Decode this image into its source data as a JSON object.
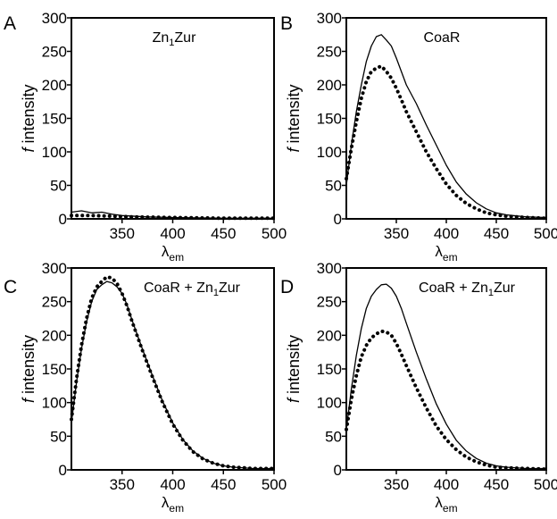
{
  "chart_data": [
    {
      "type": "line",
      "panel": "A",
      "annotation": {
        "main": "Zn",
        "sub": "1",
        "rest": "Zur"
      },
      "ylabel": {
        "italic": "f",
        "rest": " intensity"
      },
      "xlabel": {
        "main": "λ",
        "sub": "em"
      },
      "xlim": [
        300,
        500
      ],
      "ylim": [
        0,
        300
      ],
      "xticks": [
        350,
        400,
        450,
        500
      ],
      "yticks": [
        0,
        50,
        100,
        150,
        200,
        250,
        300
      ],
      "series": [
        {
          "style": "solid",
          "x": [
            300,
            310,
            320,
            330,
            340,
            350,
            375,
            400,
            450,
            500
          ],
          "y": [
            10,
            12,
            9,
            10,
            7,
            5,
            3,
            2,
            1,
            1
          ]
        },
        {
          "style": "dotted",
          "x": [
            300,
            320,
            340,
            360,
            400,
            450,
            500
          ],
          "y": [
            5,
            5,
            4,
            3,
            2,
            1,
            1
          ]
        }
      ]
    },
    {
      "type": "line",
      "panel": "B",
      "annotation": {
        "main": "CoaR",
        "sub": "",
        "rest": ""
      },
      "ylabel": {
        "italic": "f",
        "rest": " intensity"
      },
      "xlabel": {
        "main": "λ",
        "sub": "em"
      },
      "xlim": [
        300,
        500
      ],
      "ylim": [
        0,
        300
      ],
      "xticks": [
        350,
        400,
        450,
        500
      ],
      "yticks": [
        0,
        50,
        100,
        150,
        200,
        250,
        300
      ],
      "series": [
        {
          "style": "solid",
          "x": [
            300,
            305,
            310,
            315,
            320,
            325,
            330,
            335,
            340,
            345,
            350,
            355,
            360,
            370,
            380,
            390,
            400,
            410,
            420,
            430,
            440,
            450,
            460,
            480,
            500
          ],
          "y": [
            50,
            110,
            160,
            200,
            235,
            258,
            272,
            275,
            267,
            258,
            240,
            220,
            200,
            172,
            140,
            110,
            80,
            55,
            37,
            24,
            15,
            9,
            6,
            3,
            2
          ]
        },
        {
          "style": "dotted",
          "x": [
            300,
            305,
            310,
            315,
            320,
            325,
            330,
            335,
            340,
            345,
            350,
            355,
            360,
            370,
            380,
            390,
            400,
            410,
            420,
            430,
            440,
            450,
            460,
            480,
            500
          ],
          "y": [
            60,
            105,
            145,
            180,
            205,
            220,
            225,
            228,
            220,
            210,
            195,
            178,
            160,
            130,
            100,
            75,
            52,
            35,
            23,
            15,
            9,
            6,
            4,
            2,
            1
          ]
        }
      ]
    },
    {
      "type": "line",
      "panel": "C",
      "annotation": {
        "main": "CoaR + Zn",
        "sub": "1",
        "rest": "Zur"
      },
      "ylabel": {
        "italic": "f",
        "rest": " intensity"
      },
      "xlabel": {
        "main": "λ",
        "sub": "em"
      },
      "xlim": [
        300,
        500
      ],
      "ylim": [
        0,
        300
      ],
      "xticks": [
        350,
        400,
        450,
        500
      ],
      "yticks": [
        0,
        50,
        100,
        150,
        200,
        250,
        300
      ],
      "series": [
        {
          "style": "solid",
          "x": [
            300,
            305,
            310,
            315,
            320,
            325,
            330,
            335,
            340,
            345,
            350,
            355,
            360,
            370,
            380,
            390,
            400,
            410,
            420,
            430,
            440,
            450,
            460,
            480,
            500
          ],
          "y": [
            70,
            130,
            180,
            220,
            250,
            268,
            275,
            280,
            278,
            272,
            262,
            245,
            222,
            180,
            140,
            102,
            70,
            45,
            28,
            17,
            10,
            6,
            4,
            2,
            2
          ]
        },
        {
          "style": "dotted",
          "x": [
            300,
            305,
            310,
            315,
            320,
            325,
            330,
            335,
            340,
            345,
            350,
            355,
            360,
            370,
            380,
            390,
            400,
            410,
            420,
            430,
            440,
            450,
            460,
            480,
            500
          ],
          "y": [
            75,
            135,
            185,
            225,
            255,
            272,
            280,
            287,
            285,
            277,
            262,
            243,
            220,
            178,
            138,
            100,
            68,
            44,
            27,
            16,
            10,
            6,
            4,
            2,
            2
          ]
        }
      ]
    },
    {
      "type": "line",
      "panel": "D",
      "annotation": {
        "main": "CoaR + Zn",
        "sub": "1",
        "rest": "Zur"
      },
      "ylabel": {
        "italic": "f",
        "rest": " intensity"
      },
      "xlabel": {
        "main": "λ",
        "sub": "em"
      },
      "xlim": [
        300,
        500
      ],
      "ylim": [
        0,
        300
      ],
      "xticks": [
        350,
        400,
        450,
        500
      ],
      "yticks": [
        0,
        50,
        100,
        150,
        200,
        250,
        300
      ],
      "series": [
        {
          "style": "solid",
          "x": [
            300,
            305,
            310,
            315,
            320,
            325,
            330,
            335,
            340,
            345,
            350,
            355,
            360,
            370,
            380,
            390,
            400,
            410,
            420,
            430,
            440,
            450,
            460,
            480,
            500
          ],
          "y": [
            60,
            120,
            170,
            210,
            240,
            258,
            268,
            275,
            276,
            270,
            258,
            240,
            218,
            175,
            135,
            98,
            68,
            44,
            28,
            17,
            10,
            6,
            4,
            2,
            2
          ]
        },
        {
          "style": "dotted",
          "x": [
            300,
            305,
            310,
            315,
            320,
            325,
            330,
            335,
            340,
            345,
            350,
            355,
            360,
            370,
            380,
            390,
            400,
            410,
            420,
            430,
            440,
            450,
            460,
            480,
            500
          ],
          "y": [
            60,
            105,
            140,
            168,
            185,
            196,
            202,
            206,
            205,
            200,
            188,
            172,
            155,
            122,
            92,
            65,
            45,
            30,
            19,
            12,
            7,
            4,
            3,
            2,
            1
          ]
        }
      ]
    }
  ]
}
